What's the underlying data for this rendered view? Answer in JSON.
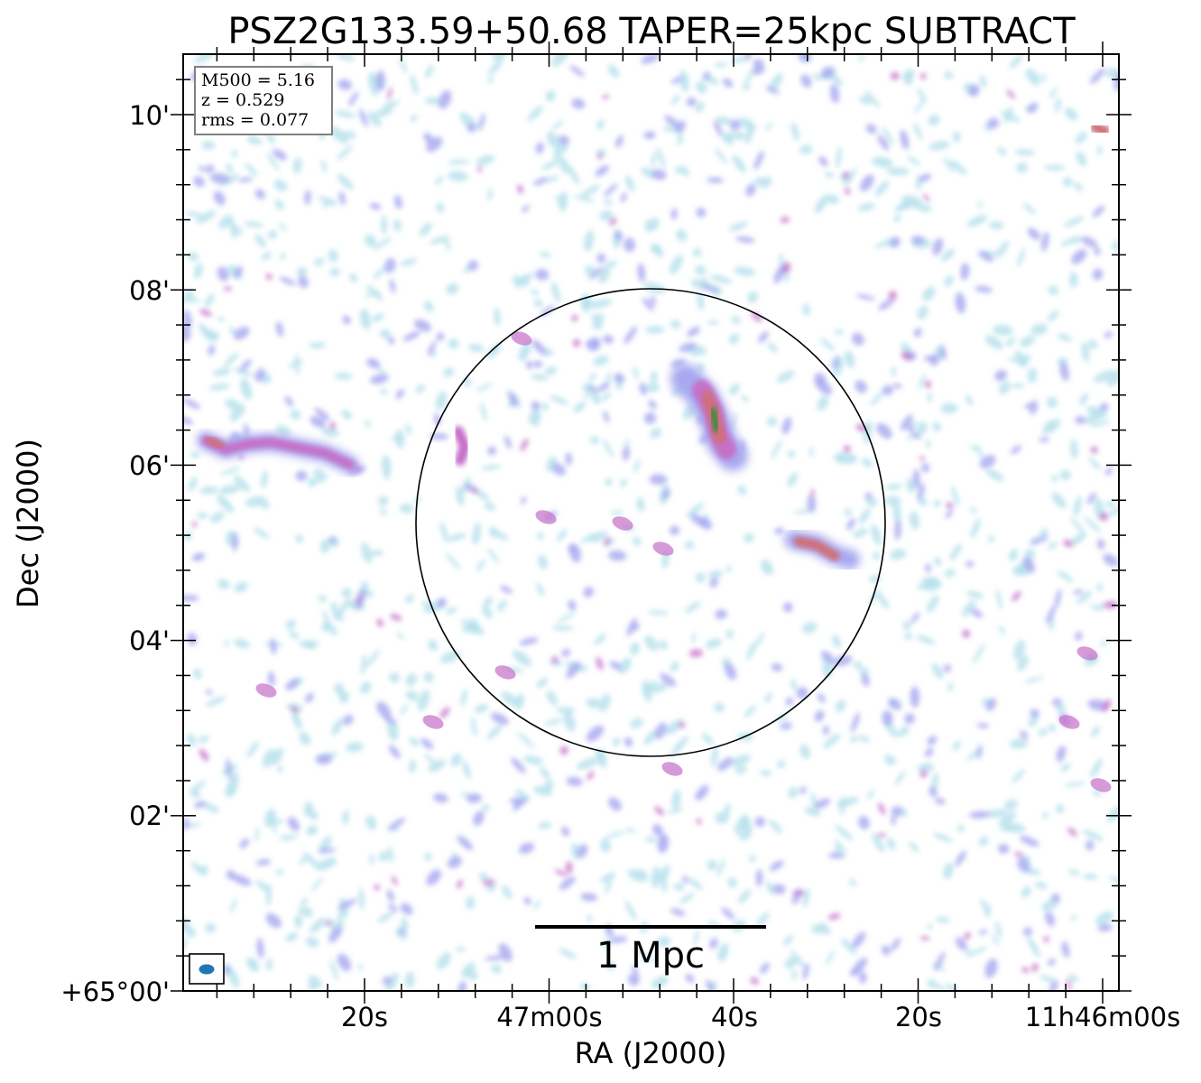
{
  "chart_data": {
    "type": "heatmap",
    "title": "PSZ2G133.59+50.68 TAPER=25kpc SUBTRACT",
    "xlabel": "RA (J2000)",
    "ylabel": "Dec (J2000)",
    "x_ticks": [
      "20s",
      "47m00s",
      "40s",
      "20s",
      "11h46m00s"
    ],
    "y_ticks": [
      "+65°00'",
      "02'",
      "04'",
      "06'",
      "08'",
      "10'"
    ],
    "info_box": [
      "M500 = 5.16",
      "z = 0.529",
      "rms = 0.077"
    ],
    "scalebar_label": "1 Mpc",
    "colormap": [
      "#ffffff",
      "#b9e2ec",
      "#a7a8f0",
      "#c66fc8",
      "#cf6f7a",
      "#3e8a3e"
    ],
    "circle_color": "#000000",
    "beam_color": "#1f77b4"
  }
}
